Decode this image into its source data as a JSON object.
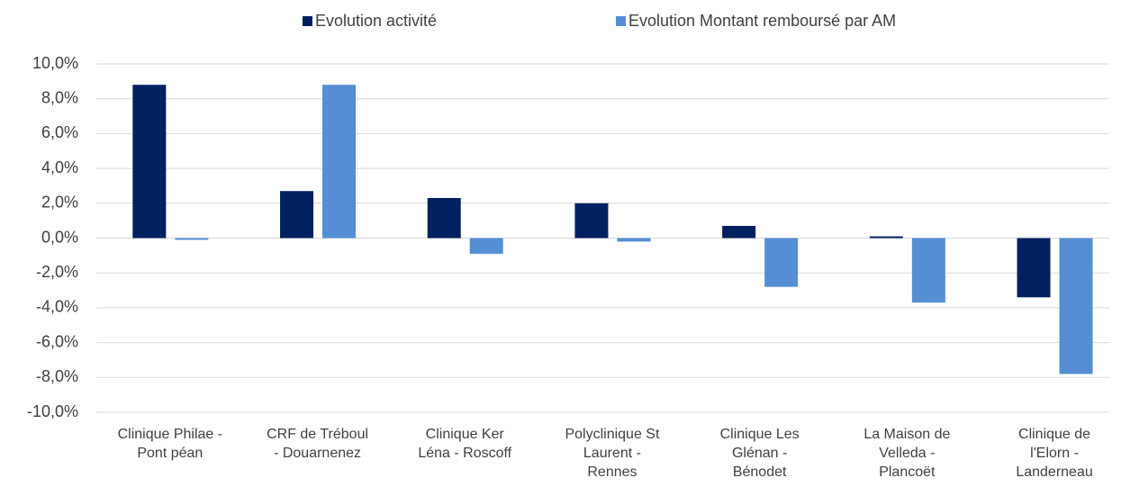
{
  "chart_data": {
    "type": "bar",
    "categories": [
      "Clinique Philae -\nPont péan",
      "CRF de Tréboul\n- Douarnenez",
      "Clinique Ker\nLéna - Roscoff",
      "Polyclinique St\nLaurent -\nRennes",
      "Clinique Les\nGlénan -\nBénodet",
      "La Maison de\nVelleda -\nPlancoët",
      "Clinique de\nl'Elorn -\nLanderneau"
    ],
    "series": [
      {
        "name": "Evolution activité",
        "color": "#002060",
        "values": [
          8.8,
          2.7,
          2.3,
          2.0,
          0.7,
          0.1,
          -3.4
        ]
      },
      {
        "name": "Evolution Montant remboursé par AM",
        "color": "#558ed5",
        "values": [
          -0.1,
          8.8,
          -0.9,
          -0.2,
          -2.8,
          -3.7,
          -7.8
        ]
      }
    ],
    "ylim": [
      -10,
      10
    ],
    "yticks": [
      {
        "value": -10,
        "label": "-10,0%"
      },
      {
        "value": -8,
        "label": "-8,0%"
      },
      {
        "value": -6,
        "label": "-6,0%"
      },
      {
        "value": -4,
        "label": "-4,0%"
      },
      {
        "value": -2,
        "label": "-2,0%"
      },
      {
        "value": 0,
        "label": "0,0%"
      },
      {
        "value": 2,
        "label": "2,0%"
      },
      {
        "value": 4,
        "label": "4,0%"
      },
      {
        "value": 6,
        "label": "6,0%"
      },
      {
        "value": 8,
        "label": "8,0%"
      },
      {
        "value": 10,
        "label": "10,0%"
      }
    ],
    "grid": true,
    "legend": "top"
  }
}
